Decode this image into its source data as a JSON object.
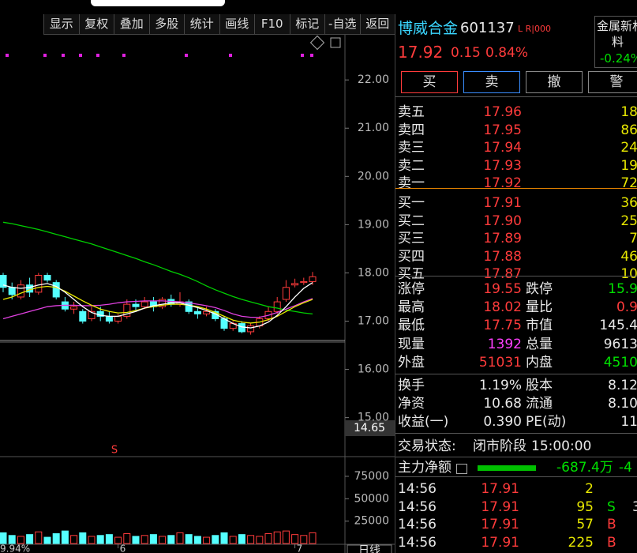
{
  "toolbar": [
    "显示",
    "复权",
    "叠加",
    "多股",
    "统计",
    "画线",
    "F10",
    "标记",
    "-自选",
    "返回"
  ],
  "chart": {
    "type": "candlestick",
    "ylim": [
      14.65,
      22.92
    ],
    "yticks": [
      {
        "value": 22,
        "label": "22.00"
      },
      {
        "value": 21,
        "label": "21.00"
      },
      {
        "value": 20,
        "label": "20.00"
      },
      {
        "value": 19,
        "label": "19.00"
      },
      {
        "value": 18,
        "label": "18.00"
      },
      {
        "value": 17,
        "label": "17.00"
      },
      {
        "value": 16,
        "label": "16.00"
      },
      {
        "value": 15,
        "label": "15.00"
      }
    ],
    "bottom_price_label": "14.65",
    "categories": [
      null,
      null,
      null,
      null,
      null,
      null,
      null,
      null,
      null,
      null,
      null,
      null,
      null,
      "6",
      null,
      null,
      null,
      null,
      null,
      null,
      null,
      null,
      null,
      null,
      null,
      null,
      null,
      null,
      null,
      null,
      null,
      null,
      null,
      "7",
      null,
      null
    ],
    "open": [
      17.95,
      17.7,
      17.5,
      17.75,
      17.6,
      17.95,
      17.8,
      17.4,
      17.25,
      17.2,
      17.05,
      17.2,
      17.1,
      17.0,
      17.1,
      17.35,
      17.3,
      17.4,
      17.3,
      17.45,
      17.35,
      17.4,
      17.2,
      17.15,
      17.2,
      17.05,
      16.85,
      16.95,
      16.78,
      16.9,
      17.05,
      17.2,
      17.45,
      17.75,
      17.8,
      17.82
    ],
    "close": [
      17.7,
      17.55,
      17.75,
      17.6,
      17.95,
      17.85,
      17.5,
      17.25,
      17.3,
      17.0,
      17.2,
      17.1,
      17.0,
      17.1,
      17.35,
      17.3,
      17.4,
      17.3,
      17.45,
      17.35,
      17.4,
      17.2,
      17.15,
      17.2,
      17.05,
      16.85,
      16.95,
      16.78,
      16.9,
      17.05,
      17.2,
      17.4,
      17.7,
      17.78,
      17.82,
      17.92
    ],
    "high": [
      18.0,
      17.8,
      17.85,
      17.9,
      18.0,
      18.0,
      17.85,
      17.5,
      17.4,
      17.25,
      17.3,
      17.3,
      17.2,
      17.15,
      17.45,
      17.45,
      17.5,
      17.5,
      17.5,
      17.55,
      17.6,
      17.45,
      17.3,
      17.3,
      17.25,
      17.1,
      17.0,
      17.0,
      16.95,
      17.1,
      17.3,
      17.5,
      17.85,
      17.88,
      17.9,
      18.02
    ],
    "low": [
      17.6,
      17.45,
      17.45,
      17.5,
      17.55,
      17.8,
      17.45,
      17.2,
      17.15,
      16.95,
      17.0,
      17.0,
      16.95,
      16.95,
      17.05,
      17.2,
      17.25,
      17.2,
      17.25,
      17.3,
      17.3,
      17.15,
      17.05,
      17.1,
      17.0,
      16.8,
      16.8,
      16.75,
      16.72,
      16.85,
      17.0,
      17.15,
      17.4,
      17.7,
      17.75,
      17.75
    ],
    "series": [
      {
        "color": "#00d000",
        "values": [
          19.05,
          19.02,
          18.98,
          18.94,
          18.9,
          18.85,
          18.8,
          18.75,
          18.7,
          18.65,
          18.6,
          18.54,
          18.48,
          18.42,
          18.36,
          18.3,
          18.23,
          18.17,
          18.1,
          18.03,
          17.97,
          17.9,
          17.82,
          17.73,
          17.65,
          17.58,
          17.51,
          17.45,
          17.4,
          17.35,
          17.3,
          17.27,
          17.23,
          17.2,
          17.17,
          17.15
        ]
      },
      {
        "color": "#e040e0",
        "values": [
          17.05,
          17.1,
          17.15,
          17.2,
          17.25,
          17.3,
          17.32,
          17.33,
          17.33,
          17.32,
          17.32,
          17.33,
          17.35,
          17.38,
          17.4,
          17.41,
          17.42,
          17.42,
          17.42,
          17.41,
          17.4,
          17.38,
          17.35,
          17.32,
          17.28,
          17.22,
          17.15,
          17.1,
          17.08,
          17.08,
          17.12,
          17.18,
          17.25,
          17.32,
          17.4,
          17.47
        ]
      },
      {
        "color": "#e8e800",
        "values": [
          17.45,
          17.5,
          17.58,
          17.65,
          17.7,
          17.72,
          17.7,
          17.62,
          17.52,
          17.42,
          17.33,
          17.25,
          17.2,
          17.17,
          17.18,
          17.22,
          17.27,
          17.3,
          17.33,
          17.35,
          17.35,
          17.33,
          17.3,
          17.25,
          17.18,
          17.1,
          17.02,
          16.98,
          16.96,
          16.98,
          17.03,
          17.1,
          17.2,
          17.3,
          17.38,
          17.45
        ]
      },
      {
        "color": "#ffffff",
        "values": [
          17.75,
          17.7,
          17.68,
          17.7,
          17.75,
          17.78,
          17.72,
          17.6,
          17.45,
          17.3,
          17.18,
          17.12,
          17.1,
          17.1,
          17.15,
          17.2,
          17.27,
          17.32,
          17.35,
          17.38,
          17.38,
          17.33,
          17.28,
          17.22,
          17.15,
          17.05,
          16.95,
          16.88,
          16.86,
          16.9,
          16.98,
          17.12,
          17.3,
          17.5,
          17.68,
          17.8
        ]
      }
    ],
    "up_color": "#ff3b3b",
    "down_color": "#54ffff",
    "signal": "S",
    "volume": {
      "ylim": [
        0,
        97000
      ],
      "yticks": [
        25000,
        50000,
        75000
      ],
      "values": [
        12000,
        9000,
        8000,
        10000,
        13000,
        7000,
        11000,
        14000,
        9000,
        12000,
        8000,
        9000,
        10000,
        7000,
        11000,
        8000,
        9000,
        10000,
        8000,
        9000,
        12000,
        10000,
        8000,
        7000,
        9000,
        12000,
        8000,
        10000,
        9000,
        8000,
        11000,
        13000,
        14000,
        10000,
        9000,
        12000
      ]
    },
    "bottom_left": "9.94%",
    "period": "日线"
  },
  "quote": {
    "name": "博威合金",
    "code": "601137",
    "flags": "L R|000",
    "sector": {
      "line1": "金属新材",
      "line2": "料",
      "change": "-0.24%"
    },
    "price": "17.92",
    "change": "0.15",
    "pct": "0.84%",
    "buttons": [
      "买",
      "卖",
      "撤",
      "警"
    ],
    "asks": [
      [
        "卖五",
        "17.96",
        "18"
      ],
      [
        "卖四",
        "17.95",
        "86"
      ],
      [
        "卖三",
        "17.94",
        "24"
      ],
      [
        "卖二",
        "17.93",
        "19"
      ],
      [
        "卖一",
        "17.92",
        "72"
      ]
    ],
    "bids": [
      [
        "买一",
        "17.91",
        "36"
      ],
      [
        "买二",
        "17.90",
        "25"
      ],
      [
        "买三",
        "17.89",
        "7"
      ],
      [
        "买四",
        "17.88",
        "46"
      ],
      [
        "买五",
        "17.87",
        "10"
      ]
    ],
    "stats": [
      [
        "涨停",
        "19.55",
        "跌停",
        "15.9"
      ],
      [
        "最高",
        "18.02",
        "量比",
        "0.9"
      ],
      [
        "最低",
        "17.75",
        "市值",
        "145.4"
      ],
      [
        "现量",
        "1392",
        "总量",
        "9613"
      ],
      [
        "外盘",
        "51031",
        "内盘",
        "4510"
      ]
    ],
    "stats2": [
      [
        "换手",
        "1.19%",
        "股本",
        "8.12"
      ],
      [
        "净资",
        "10.68",
        "流通",
        "8.10"
      ],
      [
        "收益(一)",
        "0.390",
        "PE(动)",
        "11"
      ]
    ],
    "status": {
      "label": "交易状态:",
      "phase": "闭市阶段",
      "time": "15:00:00"
    },
    "flow": {
      "label": "主力净额",
      "value": "-687.4万",
      "pct": "-4"
    },
    "trades": [
      [
        "14:56",
        "17.91",
        "2",
        "",
        ""
      ],
      [
        "14:56",
        "17.91",
        "95",
        "S",
        "3"
      ],
      [
        "14:56",
        "17.91",
        "57",
        "B",
        ""
      ],
      [
        "14:56",
        "17.91",
        "225",
        "B",
        ""
      ]
    ]
  }
}
